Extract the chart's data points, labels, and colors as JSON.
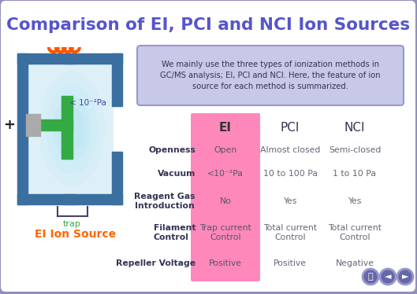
{
  "title": "Comparison of EI, PCI and NCI Ion Sources",
  "title_color": "#5555cc",
  "bg_color": "#9090bb",
  "panel_color": "#ffffff",
  "intro_box_color": "#c8c8e8",
  "intro_text": "We mainly use the three types of ionization methods in\nGC/MS analysis; EI, PCI and NCI. Here, the feature of ion\nsource for each method is summarized.",
  "ei_col_color": "#ff88bb",
  "headers": [
    "EI",
    "PCI",
    "NCI"
  ],
  "row_labels": [
    "Openness",
    "Vacuum",
    "Reagent Gas\nIntroduction",
    "Filament\nControl",
    "Repeller Voltage"
  ],
  "ei_values": [
    "Open",
    "<10⁻²Pa",
    "No",
    "Trap current\nControl",
    "Positive"
  ],
  "pci_values": [
    "Almost closed",
    "10 to 100 Pa",
    "Yes",
    "Total current\nControl",
    "Positive"
  ],
  "nci_values": [
    "Semi-closed",
    "1 to 10 Pa",
    "Yes",
    "Total current\nControl",
    "Negative"
  ],
  "ei_label": "EI Ion Source",
  "ei_label_color": "#ff6600",
  "vacuum_label": "< 10⁻²Pa",
  "trap_label": "trap",
  "plus_label": "+",
  "dark_blue": "#3a6fa0",
  "light_blue_center": "#d0eef8",
  "green_color": "#33aa44",
  "gray_color": "#aaaaaa",
  "orange_color": "#ff5500",
  "nav_color": "#6666aa",
  "row_label_color": "#333366",
  "ei_val_color": "#555555",
  "pci_val_color": "#666666",
  "nci_val_color": "#666666"
}
